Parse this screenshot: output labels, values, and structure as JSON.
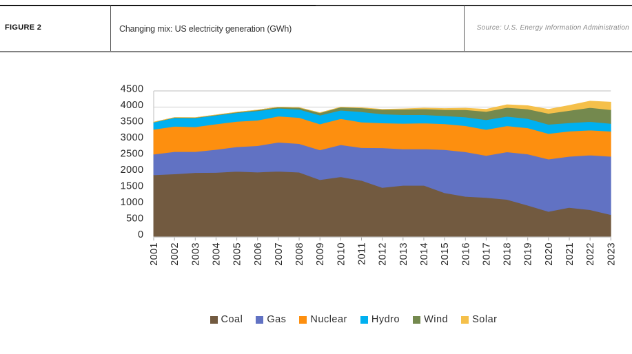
{
  "figure": {
    "label": "FIGURE 2",
    "title": "Changing mix: US electricity generation (GWh)",
    "source": "Source: U.S. Energy Information Administration"
  },
  "chart_data": {
    "type": "area",
    "stacked": true,
    "title": "Changing mix: US electricity generation (GWh)",
    "xlabel": "",
    "ylabel": "",
    "ylim": [
      0,
      4500
    ],
    "ytick_step": 500,
    "gridlines": "horizontal",
    "legend_position": "bottom",
    "x": [
      2001,
      2002,
      2003,
      2004,
      2005,
      2006,
      2007,
      2008,
      2009,
      2010,
      2011,
      2012,
      2013,
      2014,
      2015,
      2016,
      2017,
      2018,
      2019,
      2020,
      2021,
      2022,
      2023
    ],
    "series": [
      {
        "name": "Coal",
        "color": "#725A40",
        "values": [
          1904,
          1933,
          1974,
          1978,
          2013,
          1991,
          2016,
          1986,
          1756,
          1847,
          1733,
          1514,
          1581,
          1582,
          1352,
          1239,
          1206,
          1146,
          966,
          774,
          898,
          828,
          675
        ]
      },
      {
        "name": "Gas",
        "color": "#6172C3",
        "values": [
          639,
          691,
          650,
          710,
          760,
          816,
          897,
          883,
          921,
          988,
          1013,
          1225,
          1124,
          1126,
          1333,
          1378,
          1296,
          1468,
          1582,
          1617,
          1579,
          1689,
          1802
        ]
      },
      {
        "name": "Nuclear",
        "color": "#FD8F0F",
        "values": [
          769,
          780,
          764,
          788,
          782,
          787,
          806,
          806,
          799,
          807,
          790,
          769,
          789,
          797,
          797,
          806,
          805,
          807,
          809,
          790,
          778,
          772,
          775
        ]
      },
      {
        "name": "Hydro",
        "color": "#00B0F0",
        "values": [
          217,
          264,
          276,
          268,
          270,
          289,
          248,
          255,
          273,
          260,
          319,
          276,
          269,
          259,
          249,
          268,
          300,
          292,
          288,
          285,
          260,
          262,
          240
        ]
      },
      {
        "name": "Wind",
        "color": "#74894E",
        "values": [
          7,
          10,
          11,
          14,
          18,
          27,
          34,
          55,
          74,
          95,
          120,
          141,
          168,
          182,
          191,
          227,
          254,
          273,
          295,
          338,
          378,
          434,
          425
        ]
      },
      {
        "name": "Solar",
        "color": "#F5C04A",
        "values": [
          1,
          1,
          1,
          1,
          1,
          1,
          1,
          2,
          2,
          3,
          5,
          9,
          16,
          25,
          35,
          49,
          72,
          89,
          104,
          126,
          159,
          201,
          238
        ]
      }
    ]
  }
}
